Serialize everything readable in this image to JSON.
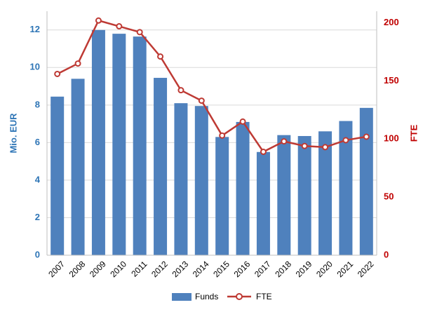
{
  "chart_data": {
    "type": "bar",
    "categories": [
      "2007",
      "2008",
      "2009",
      "2010",
      "2011",
      "2012",
      "2013",
      "2014",
      "2015",
      "2016",
      "2017",
      "2018",
      "2019",
      "2020",
      "2021",
      "2022"
    ],
    "series": [
      {
        "name": "Funds",
        "type": "bar",
        "axis": "left",
        "color": "#4F81BD",
        "values": [
          8.45,
          9.4,
          12.0,
          11.8,
          11.65,
          9.45,
          8.1,
          7.95,
          6.3,
          7.1,
          5.5,
          6.4,
          6.35,
          6.6,
          7.15,
          7.85
        ]
      },
      {
        "name": "FTE",
        "type": "line",
        "axis": "right",
        "color": "#BE3A34",
        "values": [
          156,
          165,
          202,
          197,
          192,
          171,
          142,
          133,
          103,
          115,
          89,
          98,
          94,
          93,
          99,
          102
        ]
      }
    ],
    "y_left": {
      "label": "Mio. EUR",
      "ylim": [
        0,
        13
      ],
      "ticks": [
        "0",
        "2",
        "4",
        "6",
        "8",
        "10",
        "12"
      ],
      "tick_values": [
        0,
        2,
        4,
        6,
        8,
        10,
        12
      ],
      "color": "#2E75B6"
    },
    "y_right": {
      "label": "FTE",
      "ylim": [
        0,
        210
      ],
      "ticks": [
        "0",
        "50",
        "100",
        "150",
        "200"
      ],
      "tick_values": [
        0,
        50,
        100,
        150,
        200
      ],
      "color": "#C00000"
    },
    "grid": true,
    "legend": {
      "position": "bottom",
      "items": [
        "Funds",
        "FTE"
      ]
    }
  }
}
